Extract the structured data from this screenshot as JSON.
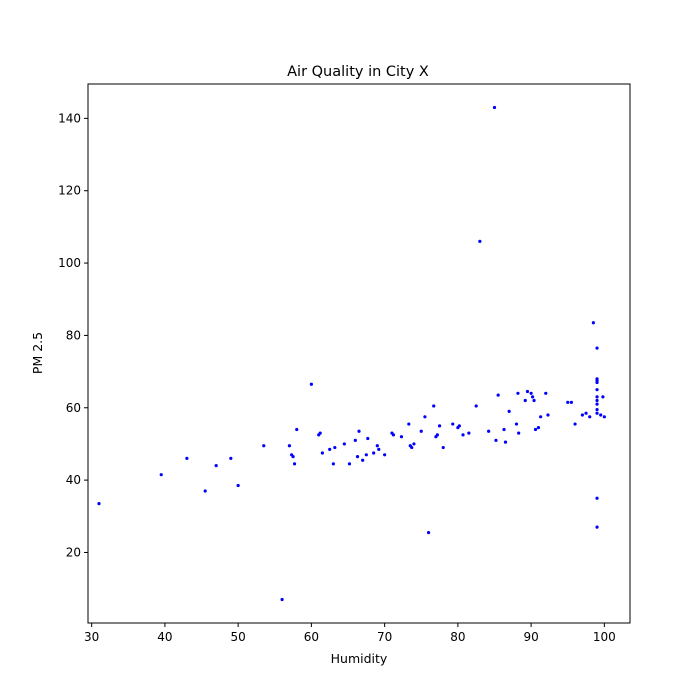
{
  "chart_data": {
    "type": "scatter",
    "title": "Air Quality in City X",
    "xlabel": "Humidity",
    "ylabel": "PM 2.5",
    "xlim": [
      29.5,
      103.5
    ],
    "ylim": [
      0.5,
      149.5
    ],
    "xticks": [
      "30",
      "40",
      "50",
      "60",
      "70",
      "80",
      "90",
      "100"
    ],
    "yticks": [
      "20",
      "40",
      "60",
      "80",
      "100",
      "120",
      "140"
    ],
    "grid": false,
    "marker_color": "#0000ff",
    "series": [
      {
        "x": [
          31,
          39.5,
          43,
          45.5,
          47,
          49,
          50,
          53.5,
          56,
          57,
          57.3,
          57.5,
          57.7,
          58,
          60,
          61,
          61.2,
          61.5,
          62.5,
          63,
          63.2,
          64.5,
          65.2,
          66,
          66.3,
          66.5,
          67,
          67.5,
          67.7,
          68.5,
          69,
          69.2,
          70,
          71,
          71.2,
          72.3,
          73.3,
          73.5,
          73.7,
          74,
          75,
          75.5,
          76,
          76.7,
          77,
          77.2,
          77.5,
          78,
          79.3,
          80,
          80.2,
          80.7,
          81.5,
          82.5,
          83,
          84.2,
          85,
          85.2,
          85.5,
          86.3,
          86.5,
          87,
          88,
          88.2,
          88.3,
          89.2,
          89.5,
          90,
          90.2,
          90.4,
          90.6,
          91,
          91.3,
          92,
          92.3,
          95,
          95.5,
          96,
          97,
          97.5,
          98,
          98.5,
          99,
          99,
          99,
          99,
          99,
          99,
          99,
          99,
          99,
          99,
          99,
          99,
          99.5,
          99.8,
          100
        ],
        "y": [
          33.5,
          41.5,
          46,
          37,
          44,
          46,
          38.5,
          49.5,
          7,
          49.5,
          47,
          46.5,
          44.5,
          54,
          66.5,
          52.5,
          53,
          47.5,
          48.5,
          44.5,
          49,
          50,
          44.5,
          51,
          46.5,
          53.5,
          45.5,
          47,
          51.5,
          47.5,
          49.5,
          48.5,
          47,
          53,
          52.5,
          52,
          55.5,
          49.5,
          49,
          50,
          53.5,
          57.5,
          25.5,
          60.5,
          52,
          52.5,
          55,
          49,
          55.5,
          54.5,
          55,
          52.5,
          53,
          60.5,
          106,
          53.5,
          143,
          51,
          63.5,
          54,
          50.5,
          59,
          55.5,
          64,
          53,
          62,
          64.5,
          64,
          63,
          62,
          54,
          54.5,
          57.5,
          64,
          58,
          61.5,
          61.5,
          55.5,
          58,
          58.5,
          57.5,
          83.5,
          76.5,
          68,
          67.5,
          67,
          65,
          63,
          62,
          61,
          59.5,
          58.5,
          35,
          27,
          58,
          63,
          57.5
        ]
      }
    ]
  }
}
